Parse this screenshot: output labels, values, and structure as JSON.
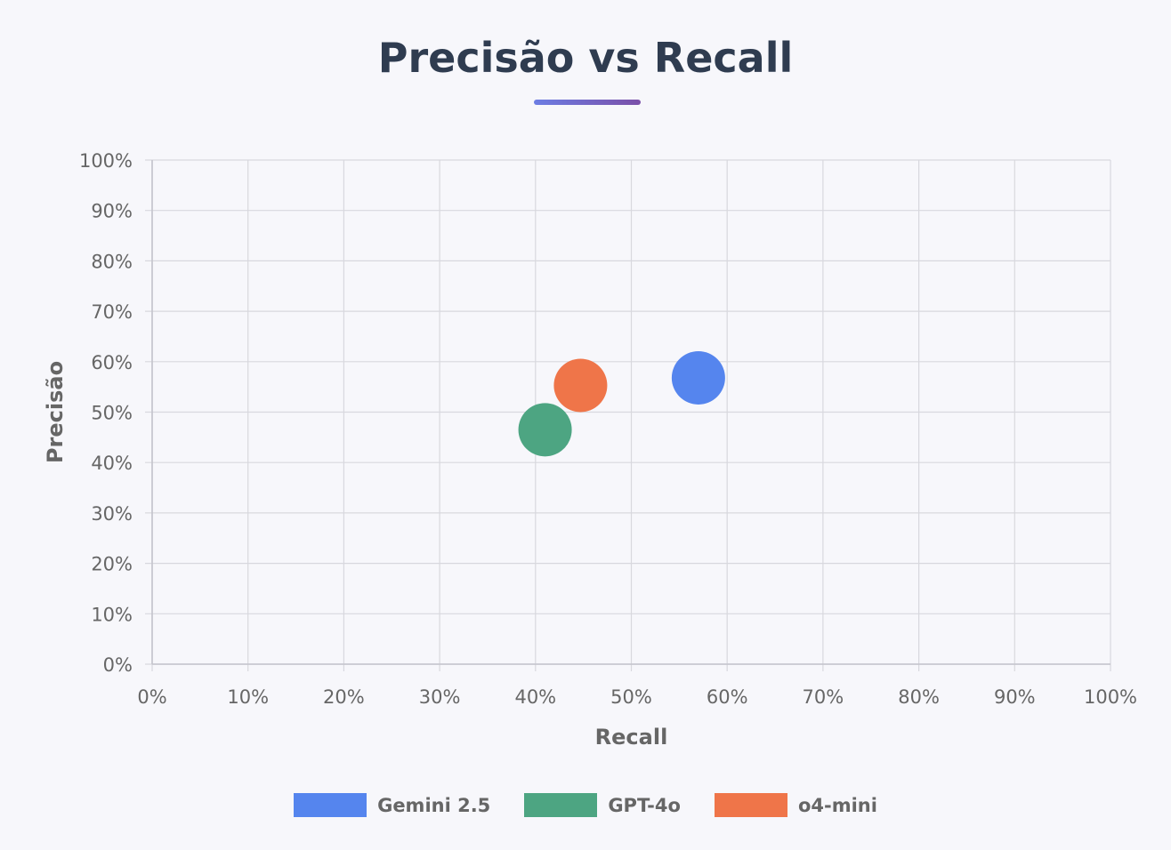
{
  "chart_data": {
    "type": "scatter",
    "title": "Precisão vs Recall",
    "xlabel": "Recall",
    "ylabel": "Precisão",
    "xlim": [
      0,
      100
    ],
    "ylim": [
      0,
      100
    ],
    "x_ticks": [
      "0%",
      "10%",
      "20%",
      "30%",
      "40%",
      "50%",
      "60%",
      "70%",
      "80%",
      "90%",
      "100%"
    ],
    "y_ticks": [
      "0%",
      "10%",
      "20%",
      "30%",
      "40%",
      "50%",
      "60%",
      "70%",
      "80%",
      "90%",
      "100%"
    ],
    "grid": true,
    "legend_position": "bottom",
    "series": [
      {
        "name": "Gemini 2.5",
        "color": "#5585ee",
        "points": [
          {
            "x": 57.0,
            "y": 56.8
          }
        ]
      },
      {
        "name": "GPT-4o",
        "color": "#4da582",
        "points": [
          {
            "x": 41.0,
            "y": 46.5
          }
        ]
      },
      {
        "name": "o4-mini",
        "color": "#ef7549",
        "points": [
          {
            "x": 44.7,
            "y": 55.3
          }
        ]
      }
    ]
  },
  "colors": {
    "title": "#2f3c50",
    "grid": "#d8d8de",
    "text": "#666666",
    "underline_start": "#6c7de3",
    "underline_end": "#7a4fa8"
  }
}
